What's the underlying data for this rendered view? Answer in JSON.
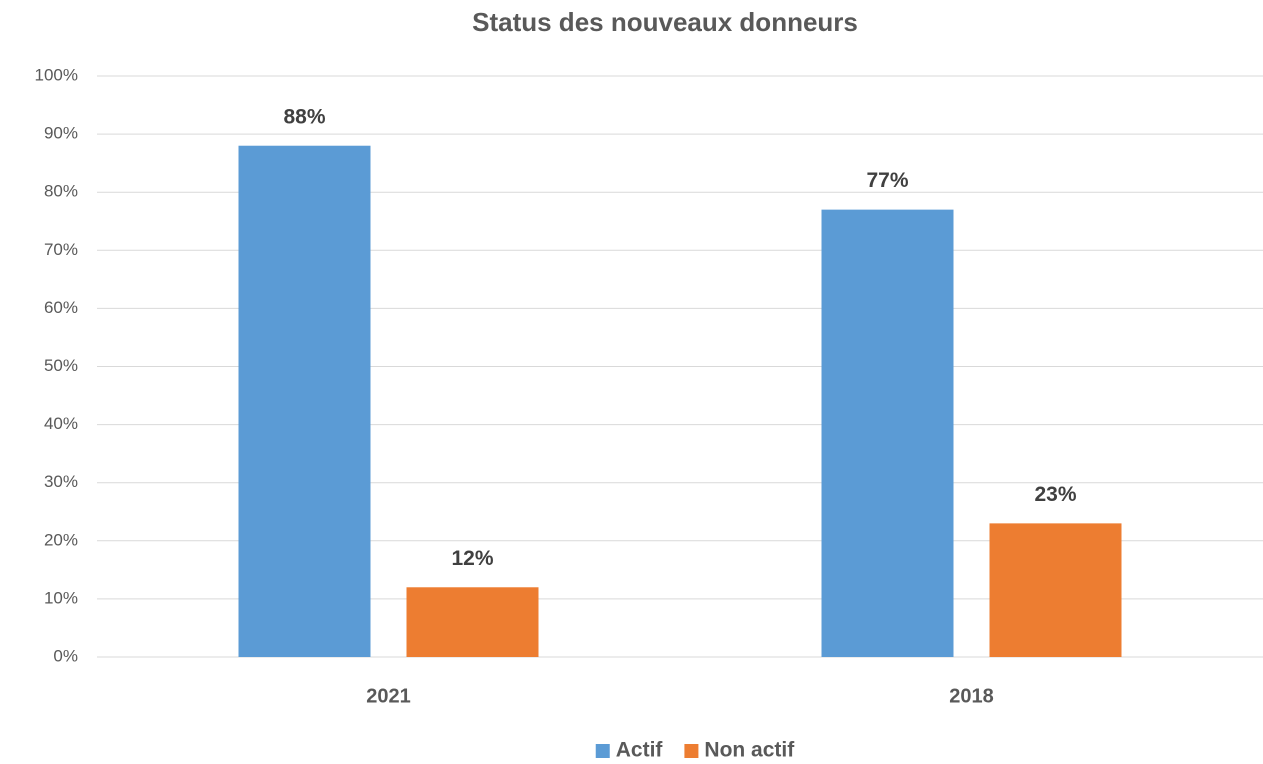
{
  "chart_data": {
    "type": "bar",
    "title": "Status des nouveaux donneurs",
    "categories": [
      "2021",
      "2018"
    ],
    "series": [
      {
        "name": "Actif",
        "color": "#5b9bd5",
        "values": [
          88,
          77
        ],
        "value_labels": [
          "88%",
          "77%"
        ]
      },
      {
        "name": "Non actif",
        "color": "#ed7d31",
        "values": [
          12,
          23
        ],
        "value_labels": [
          "12%",
          "23%"
        ]
      }
    ],
    "ylim": [
      0,
      100
    ],
    "yticks": [
      {
        "value": 0,
        "label": "0%"
      },
      {
        "value": 10,
        "label": "10%"
      },
      {
        "value": 20,
        "label": "20%"
      },
      {
        "value": 30,
        "label": "30%"
      },
      {
        "value": 40,
        "label": "40%"
      },
      {
        "value": 50,
        "label": "50%"
      },
      {
        "value": 60,
        "label": "60%"
      },
      {
        "value": 70,
        "label": "70%"
      },
      {
        "value": 80,
        "label": "80%"
      },
      {
        "value": 90,
        "label": "90%"
      },
      {
        "value": 100,
        "label": "100%"
      }
    ],
    "grid": true,
    "legend": "bottom"
  }
}
